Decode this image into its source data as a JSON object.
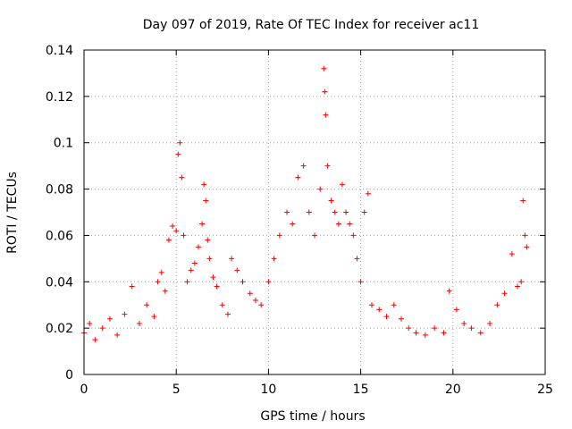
{
  "chart_data": {
    "type": "scatter",
    "title": "Day 097 of 2019, Rate Of TEC Index for receiver ac11",
    "xlabel": "GPS time / hours",
    "ylabel": "ROTI / TECUs",
    "xlim": [
      0,
      25
    ],
    "ylim": [
      0,
      0.14
    ],
    "x_ticks": [
      0,
      5,
      10,
      15,
      20,
      25
    ],
    "x_tick_labels": [
      "0",
      "5",
      "10",
      "15",
      "20",
      "25"
    ],
    "y_ticks": [
      0,
      0.02,
      0.04,
      0.06,
      0.08,
      0.1,
      0.12,
      0.14
    ],
    "y_tick_labels": [
      "0",
      "0.02",
      "0.04",
      "0.06",
      "0.08",
      "0.1",
      "0.12",
      "0.14"
    ],
    "grid": true,
    "marker": "+",
    "marker_color": "#ff0000",
    "series": [
      {
        "name": "ROTI",
        "x": [
          0.0,
          0.3,
          0.6,
          1.0,
          1.4,
          1.8,
          2.2,
          2.6,
          3.0,
          3.4,
          3.8,
          4.0,
          4.2,
          4.4,
          4.6,
          4.8,
          5.0,
          5.1,
          5.2,
          5.3,
          5.4,
          5.6,
          5.8,
          6.0,
          6.2,
          6.4,
          6.5,
          6.6,
          6.7,
          6.8,
          7.0,
          7.2,
          7.5,
          7.8,
          8.0,
          8.3,
          8.6,
          9.0,
          9.3,
          9.6,
          10.0,
          10.3,
          10.6,
          11.0,
          11.3,
          11.6,
          11.9,
          12.2,
          12.5,
          12.8,
          13.0,
          13.05,
          13.1,
          13.2,
          13.4,
          13.6,
          13.8,
          14.0,
          14.2,
          14.4,
          14.6,
          14.8,
          15.0,
          15.2,
          15.4,
          15.6,
          16.0,
          16.4,
          16.8,
          17.2,
          17.6,
          18.0,
          18.5,
          19.0,
          19.5,
          19.8,
          20.2,
          20.6,
          21.0,
          21.5,
          22.0,
          22.4,
          22.8,
          23.2,
          23.5,
          23.7,
          23.8,
          23.9,
          24.0
        ],
        "y": [
          0.018,
          0.022,
          0.015,
          0.02,
          0.024,
          0.017,
          0.026,
          0.038,
          0.022,
          0.03,
          0.025,
          0.04,
          0.044,
          0.036,
          0.058,
          0.064,
          0.062,
          0.095,
          0.1,
          0.085,
          0.06,
          0.04,
          0.045,
          0.048,
          0.055,
          0.065,
          0.082,
          0.075,
          0.058,
          0.05,
          0.042,
          0.038,
          0.03,
          0.026,
          0.05,
          0.045,
          0.04,
          0.035,
          0.032,
          0.03,
          0.04,
          0.05,
          0.06,
          0.07,
          0.065,
          0.085,
          0.09,
          0.07,
          0.06,
          0.08,
          0.132,
          0.122,
          0.112,
          0.09,
          0.075,
          0.07,
          0.065,
          0.082,
          0.07,
          0.065,
          0.06,
          0.05,
          0.04,
          0.07,
          0.078,
          0.03,
          0.028,
          0.025,
          0.03,
          0.024,
          0.02,
          0.018,
          0.017,
          0.02,
          0.018,
          0.036,
          0.028,
          0.022,
          0.02,
          0.018,
          0.022,
          0.03,
          0.035,
          0.052,
          0.038,
          0.04,
          0.075,
          0.06,
          0.055
        ]
      }
    ]
  }
}
